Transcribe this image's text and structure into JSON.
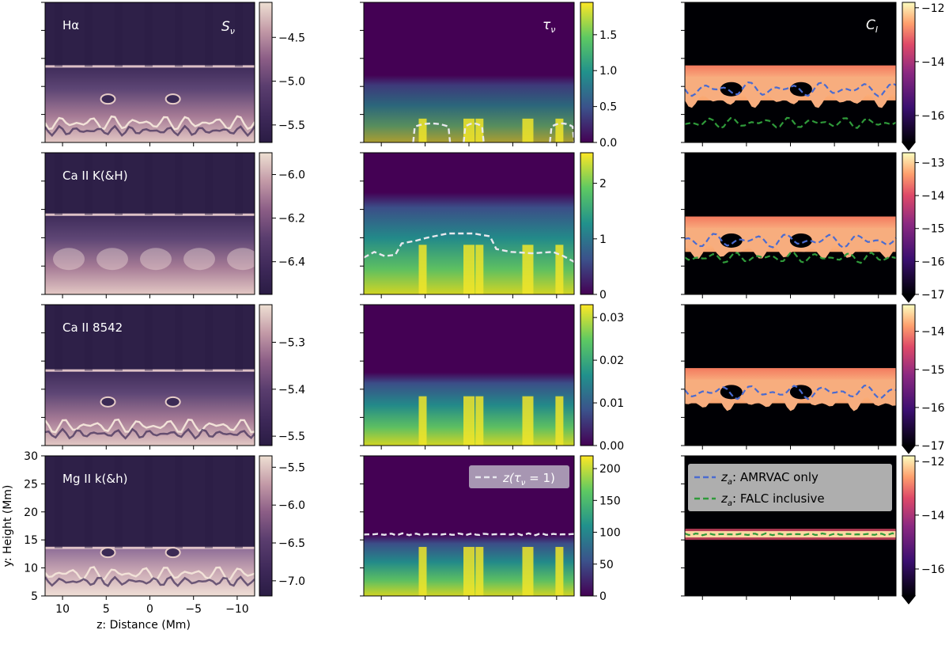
{
  "chart_data": {
    "type": "heatmap",
    "layout": {
      "rows": 4,
      "cols": 3
    },
    "row_labels": [
      "Hα",
      "Ca II K(&H)",
      "Ca II 8542",
      "Mg II k(&h)"
    ],
    "column_quantities": [
      "S_ν",
      "τ_ν",
      "C_I"
    ],
    "xaxis": {
      "label": "z: Distance (Mm)",
      "range": [
        12,
        -12
      ],
      "ticks": [
        10,
        5,
        0,
        -5,
        -10
      ]
    },
    "yaxis": {
      "label": "y: Height (Mm)",
      "range": [
        5,
        30
      ],
      "ticks": [
        5,
        10,
        15,
        20,
        25,
        30
      ]
    },
    "panels": [
      {
        "row": 0,
        "col": 0,
        "title": "Hα",
        "quantity": "S_ν",
        "colormap": "twilight-purple",
        "colorbar": {
          "range": [
            -5.7,
            -4.1
          ],
          "ticks": [
            -4.5,
            -5.0,
            -5.5
          ],
          "tick_labels": [
            "−4.5",
            "−5.0",
            "−5.5"
          ]
        }
      },
      {
        "row": 0,
        "col": 1,
        "quantity": "τ_ν",
        "colormap": "viridis",
        "colorbar": {
          "range": [
            0,
            1.95
          ],
          "ticks": [
            1.5,
            1.0,
            0.5,
            0.0
          ],
          "tick_labels": [
            "1.5",
            "1.0",
            "0.5",
            "0.0"
          ]
        }
      },
      {
        "row": 0,
        "col": 2,
        "quantity": "C_I",
        "colormap": "magma",
        "colorbar": {
          "range": [
            -17,
            -11.8
          ],
          "extend": "min",
          "ticks": [
            -12,
            -14,
            -16
          ],
          "tick_labels": [
            "−12",
            "−14",
            "−16"
          ]
        }
      },
      {
        "row": 1,
        "col": 0,
        "title": "Ca II K(&H)",
        "quantity": "S_ν",
        "colormap": "twilight-purple",
        "colorbar": {
          "range": [
            -6.55,
            -5.9
          ],
          "ticks": [
            -6.0,
            -6.2,
            -6.4
          ],
          "tick_labels": [
            "−6.0",
            "−6.2",
            "−6.4"
          ]
        }
      },
      {
        "row": 1,
        "col": 1,
        "quantity": "τ_ν",
        "colormap": "viridis",
        "colorbar": {
          "range": [
            0,
            2.55
          ],
          "ticks": [
            2,
            1,
            0
          ],
          "tick_labels": [
            "2",
            "1",
            "0"
          ]
        }
      },
      {
        "row": 1,
        "col": 2,
        "quantity": "C_I",
        "colormap": "magma",
        "colorbar": {
          "range": [
            -17,
            -12.7
          ],
          "extend": "min",
          "ticks": [
            -13,
            -14,
            -15,
            -16,
            -17
          ],
          "tick_labels": [
            "−13",
            "−14",
            "−15",
            "−16",
            "−17"
          ]
        }
      },
      {
        "row": 2,
        "col": 0,
        "title": "Ca II 8542",
        "quantity": "S_ν",
        "colormap": "twilight-purple",
        "colorbar": {
          "range": [
            -5.52,
            -5.22
          ],
          "ticks": [
            -5.3,
            -5.4,
            -5.5
          ],
          "tick_labels": [
            "−5.3",
            "−5.4",
            "−5.5"
          ]
        }
      },
      {
        "row": 2,
        "col": 1,
        "quantity": "τ_ν",
        "colormap": "viridis",
        "colorbar": {
          "range": [
            0,
            0.033
          ],
          "ticks": [
            0.03,
            0.02,
            0.01,
            0.0
          ],
          "tick_labels": [
            "0.03",
            "0.02",
            "0.01",
            "0.00"
          ]
        }
      },
      {
        "row": 2,
        "col": 2,
        "quantity": "C_I",
        "colormap": "magma",
        "colorbar": {
          "range": [
            -17,
            -13.3
          ],
          "extend": "min",
          "ticks": [
            -14,
            -15,
            -16,
            -17
          ],
          "tick_labels": [
            "−14",
            "−15",
            "−16",
            "−17"
          ]
        }
      },
      {
        "row": 3,
        "col": 0,
        "title": "Mg II k(&h)",
        "quantity": "S_ν",
        "colormap": "twilight-purple",
        "colorbar": {
          "range": [
            -7.2,
            -5.35
          ],
          "ticks": [
            -5.5,
            -6.0,
            -6.5,
            -7.0
          ],
          "tick_labels": [
            "−5.5",
            "−6.0",
            "−6.5",
            "−7.0"
          ]
        }
      },
      {
        "row": 3,
        "col": 1,
        "quantity": "τ_ν",
        "colormap": "viridis",
        "colorbar": {
          "range": [
            0,
            220
          ],
          "ticks": [
            200,
            150,
            100,
            50,
            0
          ],
          "tick_labels": [
            "200",
            "150",
            "100",
            "50",
            "0"
          ]
        },
        "legend": [
          "z(τ_ν = 1)"
        ]
      },
      {
        "row": 3,
        "col": 2,
        "quantity": "C_I",
        "colormap": "magma",
        "colorbar": {
          "range": [
            -17,
            -11.8
          ],
          "extend": "min",
          "ticks": [
            -12,
            -14,
            -16
          ],
          "tick_labels": [
            "−12",
            "−14",
            "−16"
          ]
        },
        "legend": [
          "z_a: AMRVAC only",
          "z_a: FALC inclusive"
        ]
      }
    ],
    "series_styles": {
      "tau_unity": {
        "color": "#e8e8ee",
        "dash": "dashed"
      },
      "amrvac": {
        "color": "#4a6bd0",
        "dash": "dashed"
      },
      "falc": {
        "color": "#2f9a3a",
        "dash": "dashed"
      }
    }
  },
  "colors": {
    "tau_unity": "#e8e8ee",
    "amrvac": "#4a6bd0",
    "falc": "#2f9a3a"
  },
  "legend": {
    "tau_prefix": "z(τ",
    "tau_sub": "ν",
    "tau_suffix": " = 1)",
    "za_main": "z",
    "za_sub": "a",
    "amrvac_suffix": ": AMRVAC only",
    "falc_suffix": ": FALC inclusive"
  },
  "labels": {
    "S_main": "S",
    "S_sub": "ν",
    "tau_main": "τ",
    "tau_sub": "ν",
    "C_main": "C",
    "C_sub": "I"
  }
}
